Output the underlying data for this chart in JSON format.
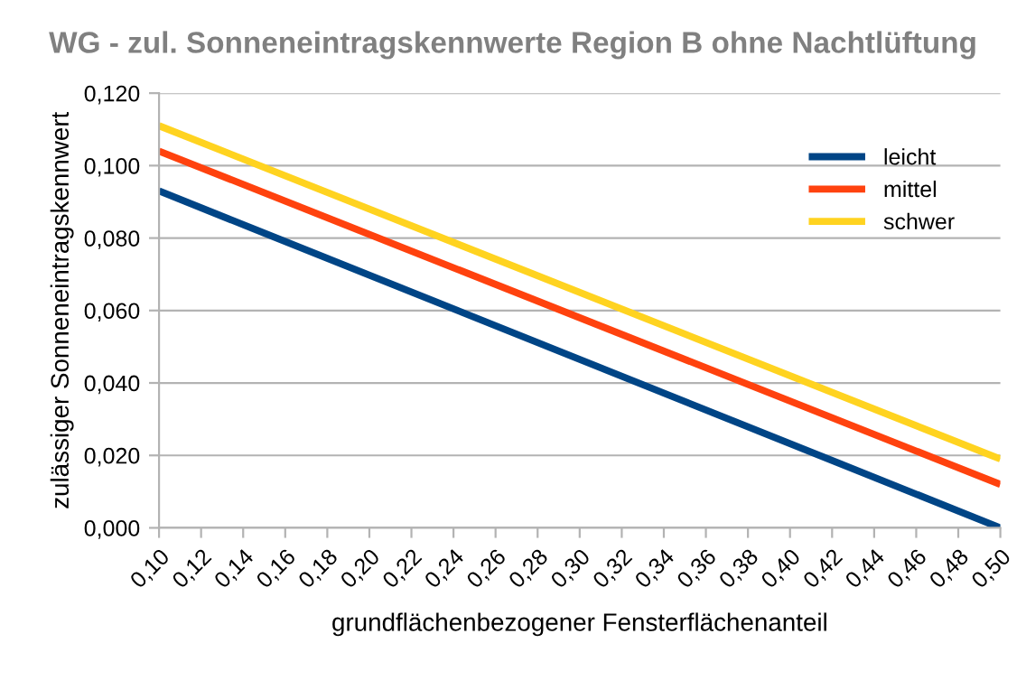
{
  "chart_data": {
    "type": "line",
    "title": "WG - zul. Sonneneintragskennwerte Region B ohne Nachtlüftung",
    "xlabel": "grundflächenbezogener Fensterflächenanteil",
    "ylabel": "zulässiger Sonneneintragskennwert",
    "series": [
      {
        "name": "leicht",
        "color": "#004586",
        "values": [
          0.093,
          0.0
        ]
      },
      {
        "name": "mittel",
        "color": "#ff420e",
        "values": [
          0.104,
          0.012
        ]
      },
      {
        "name": "schwer",
        "color": "#ffd320",
        "values": [
          0.111,
          0.019
        ]
      }
    ],
    "x": [
      0.1,
      0.5
    ],
    "xlim": [
      0.1,
      0.5
    ],
    "xticks": [
      {
        "value": 0.1,
        "label": "0,10"
      },
      {
        "value": 0.12,
        "label": "0,12"
      },
      {
        "value": 0.14,
        "label": "0,14"
      },
      {
        "value": 0.16,
        "label": "0,16"
      },
      {
        "value": 0.18,
        "label": "0,18"
      },
      {
        "value": 0.2,
        "label": "0,20"
      },
      {
        "value": 0.22,
        "label": "0,22"
      },
      {
        "value": 0.24,
        "label": "0,24"
      },
      {
        "value": 0.26,
        "label": "0,26"
      },
      {
        "value": 0.28,
        "label": "0,28"
      },
      {
        "value": 0.3,
        "label": "0,30"
      },
      {
        "value": 0.32,
        "label": "0,32"
      },
      {
        "value": 0.34,
        "label": "0,34"
      },
      {
        "value": 0.36,
        "label": "0,36"
      },
      {
        "value": 0.38,
        "label": "0,38"
      },
      {
        "value": 0.4,
        "label": "0,40"
      },
      {
        "value": 0.42,
        "label": "0,42"
      },
      {
        "value": 0.44,
        "label": "0,44"
      },
      {
        "value": 0.46,
        "label": "0,46"
      },
      {
        "value": 0.48,
        "label": "0,48"
      },
      {
        "value": 0.5,
        "label": "0,50"
      }
    ],
    "ylim": [
      0,
      0.12
    ],
    "yticks": [
      {
        "value": 0,
        "label": "0,000"
      },
      {
        "value": 0.02,
        "label": "0,020"
      },
      {
        "value": 0.04,
        "label": "0,040"
      },
      {
        "value": 0.06,
        "label": "0,060"
      },
      {
        "value": 0.08,
        "label": "0,080"
      },
      {
        "value": 0.1,
        "label": "0,100"
      },
      {
        "value": 0.12,
        "label": "0,120"
      }
    ],
    "grid": "y",
    "legend": "top right",
    "marker": "none",
    "line_style": "solid"
  }
}
